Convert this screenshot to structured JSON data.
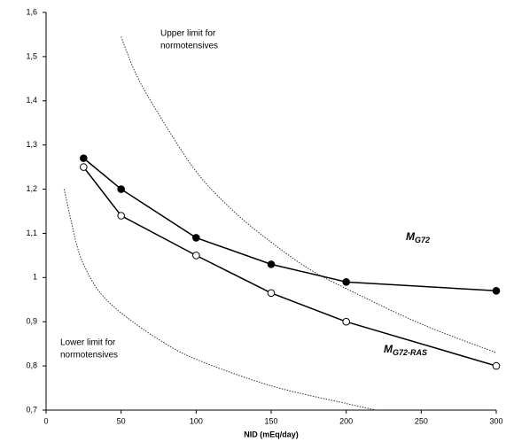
{
  "chart_data": {
    "type": "line",
    "x_label": "NID  (mEq/day)",
    "xlim": [
      0,
      300
    ],
    "xticks": [
      0,
      50,
      100,
      150,
      200,
      250,
      300
    ],
    "ylim": [
      0.7,
      1.6
    ],
    "yticks": [
      {
        "value": 0.7,
        "label": "0,7"
      },
      {
        "value": 0.8,
        "label": "0,8"
      },
      {
        "value": 0.9,
        "label": "0,9"
      },
      1,
      {
        "value": 1.1,
        "label": "1,1"
      },
      {
        "value": 1.2,
        "label": "1,2"
      },
      {
        "value": 1.3,
        "label": "1,3"
      },
      {
        "value": 1.4,
        "label": "1,4"
      },
      {
        "value": 1.5,
        "label": "1,5"
      },
      {
        "value": 1.6,
        "label": "1,6"
      }
    ],
    "grid": false,
    "series": [
      {
        "label": {
          "main": "M",
          "sub": "G72"
        },
        "color": "#000000",
        "marker": "filled",
        "x": [
          25,
          50,
          100,
          150,
          200,
          300
        ],
        "values": [
          1.27,
          1.2,
          1.09,
          1.03,
          0.99,
          0.97
        ]
      },
      {
        "label": {
          "main": "M",
          "sub": "G72-RAS"
        },
        "color": "#000000",
        "marker": "open",
        "x": [
          25,
          50,
          100,
          150,
          200,
          300
        ],
        "values": [
          1.25,
          1.14,
          1.05,
          0.965,
          0.9,
          0.8
        ]
      }
    ],
    "limit_curves": [
      {
        "label": [
          "Upper limit for",
          "normotensives"
        ],
        "x": [
          50,
          60,
          75,
          100,
          125,
          150,
          175,
          200,
          250,
          300
        ],
        "values": [
          1.545,
          1.46,
          1.37,
          1.24,
          1.15,
          1.08,
          1.02,
          0.975,
          0.895,
          0.83
        ]
      },
      {
        "label": [
          "Lower limit for",
          "normotensives"
        ],
        "x": [
          12,
          20,
          25,
          35,
          50,
          75,
          100,
          150,
          200,
          220
        ],
        "values": [
          1.2,
          1.08,
          1.03,
          0.97,
          0.92,
          0.86,
          0.815,
          0.755,
          0.715,
          0.7
        ]
      }
    ]
  }
}
